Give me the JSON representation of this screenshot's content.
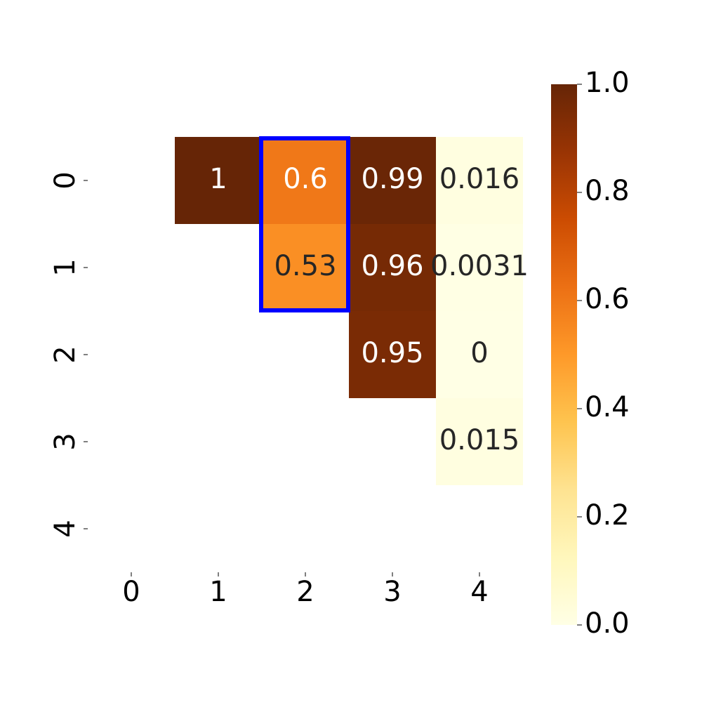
{
  "chart_data": {
    "type": "heatmap",
    "x_categories": [
      "0",
      "1",
      "2",
      "3",
      "4"
    ],
    "y_categories": [
      "0",
      "1",
      "2",
      "3",
      "4"
    ],
    "values": [
      [
        null,
        1,
        0.6,
        0.99,
        0.016
      ],
      [
        null,
        null,
        0.53,
        0.96,
        0.0031
      ],
      [
        null,
        null,
        null,
        0.95,
        0
      ],
      [
        null,
        null,
        null,
        null,
        0.015
      ],
      [
        null,
        null,
        null,
        null,
        null
      ]
    ],
    "colormap": "YlOrBr",
    "clim": [
      0,
      1
    ],
    "cticks": [
      {
        "value": 0,
        "label": "0.0"
      },
      0.2,
      0.4,
      0.6,
      0.8,
      {
        "value": 1,
        "label": "1.0"
      }
    ]
  }
}
